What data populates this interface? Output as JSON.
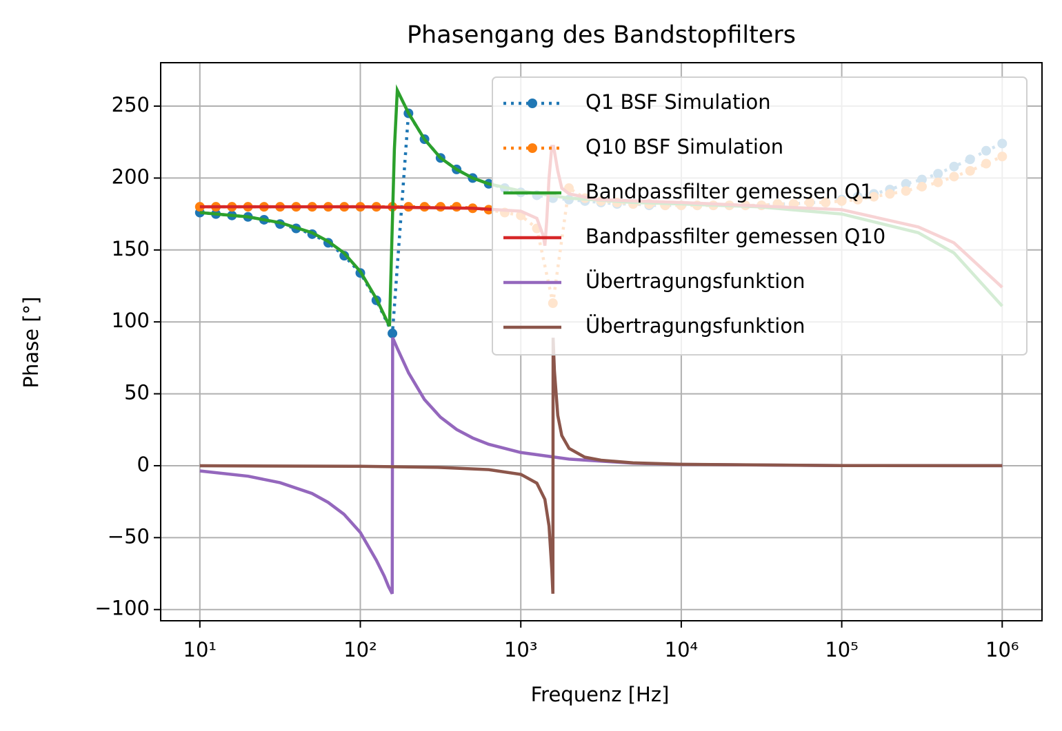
{
  "chart_data": {
    "type": "line",
    "title": "Phasengang des Bandstopfilters",
    "x_label": "Frequenz [Hz]",
    "y_label": "Phase [°]",
    "xscale": "log",
    "grid": true,
    "legend": "upper right",
    "xlim": [
      5.7,
      1770000
    ],
    "ylim": [
      -107.8,
      280.2
    ],
    "xticks": [
      {
        "value": 10,
        "label": "10¹"
      },
      {
        "value": 100,
        "label": "10²"
      },
      {
        "value": 1000,
        "label": "10³"
      },
      {
        "value": 10000,
        "label": "10⁴"
      },
      {
        "value": 100000,
        "label": "10⁵"
      },
      {
        "value": 1000000,
        "label": "10⁶"
      }
    ],
    "yticks": [
      {
        "value": -100,
        "label": "−100"
      },
      {
        "value": -50,
        "label": "−50"
      },
      0,
      50,
      100,
      150,
      200,
      250
    ],
    "x": [
      10,
      12.59,
      15.85,
      19.95,
      25.12,
      31.62,
      39.81,
      50.12,
      63.1,
      79.43,
      100,
      125.9,
      158.5,
      199.5,
      251.2,
      316.2,
      398.1,
      501.2,
      631,
      794.3,
      1000,
      1259,
      1585,
      1995,
      2512,
      3162,
      3981,
      5012,
      6310,
      7943,
      10000,
      12590,
      15850,
      19950,
      25120,
      31620,
      39810,
      50120,
      63100,
      79430,
      100000,
      125900,
      158500,
      199500,
      251200,
      316200,
      398100,
      501200,
      631000,
      794300,
      1000000
    ],
    "series": [
      {
        "name": "Q1 BSF Simulation",
        "color": "#1f77b4",
        "linestyle": "dotted",
        "marker": "o",
        "values": [
          176,
          175,
          174,
          173,
          171,
          168,
          165,
          161,
          155,
          146,
          134,
          115,
          92,
          245,
          227,
          214,
          206,
          200,
          196,
          193,
          190,
          188,
          186,
          185,
          184,
          183,
          182,
          182,
          181,
          181,
          181,
          181,
          181,
          181,
          181,
          181,
          182,
          182,
          183,
          183,
          185,
          187,
          189,
          192,
          196,
          199,
          203,
          208,
          213,
          219,
          224
        ]
      },
      {
        "name": "Q10 BSF Simulation",
        "color": "#ff7f0e",
        "linestyle": "dotted",
        "marker": "o",
        "values": [
          180,
          180,
          180,
          180,
          180,
          180,
          180,
          180,
          180,
          180,
          180,
          180,
          180,
          180,
          180,
          180,
          180,
          179,
          178,
          176,
          174,
          165,
          113,
          193,
          186,
          184,
          183,
          182,
          182,
          181,
          181,
          181,
          181,
          181,
          181,
          181,
          182,
          182,
          183,
          183,
          184,
          185,
          187,
          189,
          191,
          194,
          197,
          201,
          205,
          210,
          215
        ]
      },
      {
        "name": "Bandpassfilter gemessen Q1",
        "color": "#2ca02c",
        "linestyle": "solid",
        "x": [
          10,
          20,
          31.6,
          50,
          63,
          79,
          100,
          126,
          152,
          163,
          170,
          200,
          251,
          316,
          398,
          501,
          631,
          1000,
          2000,
          5000,
          10000,
          30000,
          100000,
          300000,
          500000,
          1000000
        ],
        "values": [
          176,
          173,
          169,
          162,
          156,
          148,
          135,
          116,
          97,
          220,
          261,
          245,
          227,
          214,
          206,
          200,
          196,
          191,
          186,
          183,
          182,
          180,
          175,
          162,
          148,
          111
        ]
      },
      {
        "name": "Bandpassfilter gemessen Q10",
        "color": "#d62728",
        "linestyle": "solid",
        "x": [
          10,
          100,
          500,
          1000,
          1259,
          1380,
          1413,
          1450,
          1500,
          1560,
          1600,
          1700,
          1800,
          2000,
          3000,
          10000,
          100000,
          300000,
          500000,
          1000000
        ],
        "values": [
          180,
          180,
          179,
          177,
          172,
          160,
          153,
          170,
          200,
          222,
          222,
          205,
          193,
          189,
          185,
          183,
          178,
          166,
          155,
          124
        ]
      },
      {
        "name": "Übertragungsfunktion",
        "color": "#9467bd",
        "linestyle": "solid",
        "x": [
          10,
          20,
          31.6,
          50,
          63,
          79,
          100,
          126,
          141,
          150,
          158,
          159,
          170,
          200,
          251,
          316,
          398,
          501,
          631,
          1000,
          2000,
          5000,
          10000,
          100000,
          1000000
        ],
        "values": [
          -3.6,
          -7.3,
          -11.8,
          -19.3,
          -25.5,
          -33.7,
          -46.4,
          -65.8,
          -76.8,
          -84.1,
          -89,
          89,
          81.6,
          64.5,
          46,
          33.7,
          25.2,
          19.3,
          14.9,
          9.2,
          4.6,
          1.8,
          0.9,
          0.09,
          0.01
        ]
      },
      {
        "name": "Übertragungsfunktion",
        "color": "#8c564b",
        "linestyle": "solid",
        "x": [
          10,
          100,
          316,
          631,
          1000,
          1259,
          1413,
          1500,
          1560,
          1585,
          1590,
          1620,
          1700,
          1800,
          2000,
          2500,
          3162,
          5000,
          10000,
          100000,
          1000000
        ],
        "values": [
          -0.04,
          -0.4,
          -1.2,
          -2.7,
          -6,
          -12.1,
          -23.4,
          -42,
          -72,
          -89,
          89,
          66,
          35,
          21,
          12,
          6,
          3.8,
          2,
          1,
          0.1,
          0.01
        ]
      }
    ]
  }
}
